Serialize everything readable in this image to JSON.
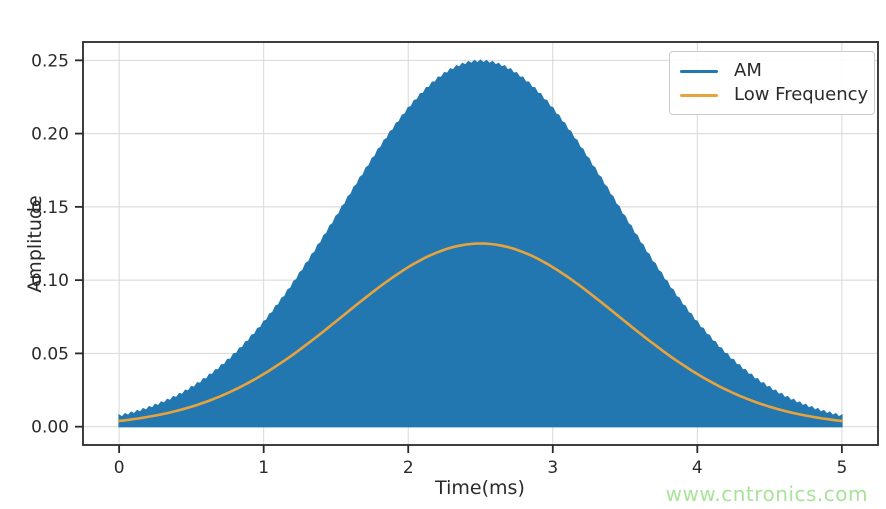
{
  "watermark": {
    "text": "www.cntronics.com",
    "color": "#a9e39b"
  },
  "chart_data": {
    "type": "line",
    "title": "",
    "xlabel": "Time(ms)",
    "ylabel": "Amplitude",
    "xlim": [
      -0.25,
      5.25
    ],
    "ylim": [
      -0.0125,
      0.2625
    ],
    "x_ticks": [
      0,
      1,
      2,
      3,
      4,
      5
    ],
    "x_tick_labels": [
      "0",
      "1",
      "2",
      "3",
      "4",
      "5"
    ],
    "y_ticks": [
      0.0,
      0.05,
      0.1,
      0.15,
      0.2,
      0.25
    ],
    "y_tick_labels": [
      "0.00",
      "0.05",
      "0.10",
      "0.15",
      "0.20",
      "0.25"
    ],
    "grid": true,
    "grid_color": "#d8d8d8",
    "axis_color": "#2a2a2a",
    "background_color": "#ffffff",
    "legend_position": "upper right",
    "series": [
      {
        "name": "AM",
        "color": "#2377b1",
        "kind": "am_signal",
        "description": "Amplitude-modulated carrier; rapid oscillation filling the band from 0 up to the envelope",
        "envelope": {
          "shape": "gaussian",
          "amplitude": 0.25,
          "center_ms": 2.5,
          "sigma_ms": 0.95
        },
        "fill_from": 0,
        "envelope_samples": {
          "t_ms": [
            0,
            0.25,
            0.5,
            0.75,
            1.0,
            1.25,
            1.5,
            1.75,
            2.0,
            2.25,
            2.5,
            2.75,
            3.0,
            3.25,
            3.5,
            3.75,
            4.0,
            4.25,
            4.5,
            4.75,
            5.0
          ],
          "value": [
            0.0078,
            0.0151,
            0.0273,
            0.0458,
            0.0719,
            0.1052,
            0.1437,
            0.1831,
            0.2177,
            0.2415,
            0.25,
            0.2415,
            0.2177,
            0.1831,
            0.1437,
            0.1052,
            0.0719,
            0.0458,
            0.0273,
            0.0151,
            0.0078
          ]
        }
      },
      {
        "name": "Low Frequency",
        "color": "#e8a33c",
        "kind": "smooth_line",
        "description": "Modulating low-frequency signal, half the AM envelope",
        "envelope": {
          "shape": "gaussian",
          "amplitude": 0.125,
          "center_ms": 2.5,
          "sigma_ms": 0.95
        },
        "samples": {
          "t_ms": [
            0,
            0.25,
            0.5,
            0.75,
            1.0,
            1.25,
            1.5,
            1.75,
            2.0,
            2.25,
            2.5,
            2.75,
            3.0,
            3.25,
            3.5,
            3.75,
            4.0,
            4.25,
            4.5,
            4.75,
            5.0
          ],
          "value": [
            0.0039,
            0.0076,
            0.0136,
            0.0229,
            0.0359,
            0.0526,
            0.0718,
            0.0915,
            0.1088,
            0.1208,
            0.125,
            0.1208,
            0.1088,
            0.0915,
            0.0718,
            0.0526,
            0.0359,
            0.0229,
            0.0136,
            0.0076,
            0.0039
          ]
        }
      }
    ]
  }
}
